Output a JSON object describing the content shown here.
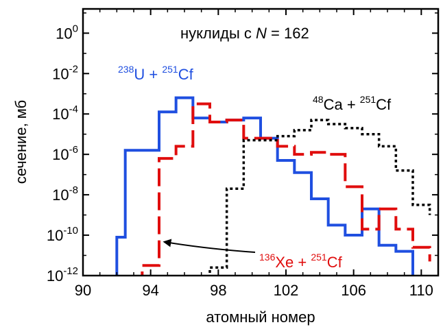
{
  "chart_data": {
    "type": "line",
    "step": true,
    "title": "",
    "annotation_title": {
      "text": "нуклиды с ",
      "var": "N",
      "rest": " = 162"
    },
    "xlabel": "атомный номер",
    "ylabel": "сечение, мб",
    "xlim": [
      90,
      111
    ],
    "ylim_log10": [
      -12,
      1.2
    ],
    "log_y": true,
    "x_ticks": [
      90,
      94,
      98,
      102,
      106,
      110
    ],
    "x_tick_labels": [
      "90",
      "94",
      "98",
      "102",
      "106",
      "110"
    ],
    "y_ticks_log10": [
      0,
      -2,
      -4,
      -6,
      -8,
      -10,
      -12
    ],
    "y_tick_base": "10",
    "y_tick_exponents": [
      "0",
      "-2",
      "-4",
      "-6",
      "-8",
      "-10",
      "-12"
    ],
    "series": [
      {
        "name": "238U + 251Cf",
        "label_parts": [
          {
            "sup": "238"
          },
          {
            "t": "U + "
          },
          {
            "sup": "251"
          },
          {
            "t": "Cf"
          }
        ],
        "color": "#1f4fe0",
        "style": "solid",
        "edges": [
          92,
          92.5,
          93.5,
          94.5,
          95.5,
          96.5,
          97.5,
          98.5,
          99.5,
          100.5,
          101.5,
          102.5,
          103.5,
          104.5,
          105.5,
          106.5,
          107.5,
          108.5,
          109.5
        ],
        "log10_values": [
          -10.1,
          -5.8,
          -5.8,
          -3.9,
          -3.2,
          -4.2,
          -4.4,
          -4.3,
          -4.2,
          -5.2,
          -6.3,
          -6.9,
          -8.2,
          -9.5,
          -10.0,
          -8.7,
          -10.5,
          -10.8
        ]
      },
      {
        "name": "136Xe + 251Cf",
        "label_parts": [
          {
            "sup": "136"
          },
          {
            "t": "Xe + "
          },
          {
            "sup": "251"
          },
          {
            "t": "Cf"
          }
        ],
        "color": "#e00d0d",
        "style": "dashed",
        "edges": [
          93.5,
          94.5,
          95.5,
          96.5,
          97.5,
          98.5,
          99.5,
          100.5,
          101.5,
          102.5,
          103.5,
          104.5,
          105.5,
          106.5,
          107.5,
          108.5,
          109.5,
          110.5
        ],
        "log10_values": [
          -11.5,
          -6.2,
          -5.6,
          -3.5,
          -4.4,
          -4.3,
          -5.2,
          -5.2,
          -5.6,
          -6.0,
          -5.9,
          -6.0,
          -7.6,
          -9.7,
          -8.7,
          -9.7,
          -10.6,
          -11.3
        ]
      },
      {
        "name": "48Ca + 251Cf",
        "label_parts": [
          {
            "sup": "48"
          },
          {
            "t": "Ca + "
          },
          {
            "sup": "251"
          },
          {
            "t": "Cf"
          }
        ],
        "color": "#000000",
        "style": "dotted",
        "edges": [
          97.5,
          98.5,
          99.5,
          100.5,
          101.5,
          102.5,
          103.5,
          104.5,
          105.5,
          106.5,
          107.5,
          108.5,
          109.5,
          110.5
        ],
        "log10_values": [
          -11.6,
          -7.7,
          -5.3,
          -5.3,
          -5.1,
          -4.8,
          -4.3,
          -4.5,
          -4.7,
          -5.0,
          -5.6,
          -6.8,
          -8.5,
          -9.0
        ]
      }
    ],
    "arrow_annotation": {
      "from_label": "136Xe + 251Cf",
      "to_x": 94.6,
      "to_log10": -10.2
    }
  }
}
